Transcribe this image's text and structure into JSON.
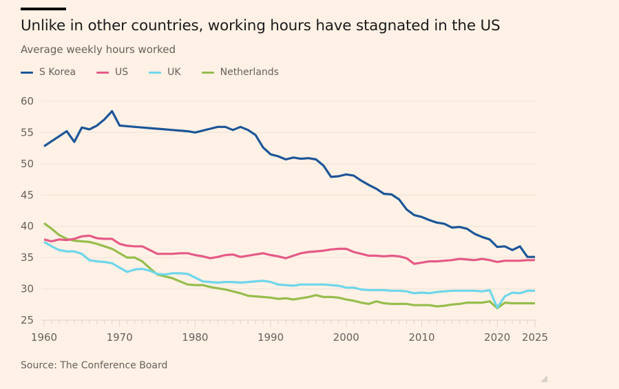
{
  "header": {
    "title": "Unlike in other countries, working hours have stagnated in the US",
    "subtitle": "Average weekly hours worked"
  },
  "legend": [
    {
      "label": "S Korea",
      "color": "#1b5597"
    },
    {
      "label": "US",
      "color": "#e55a86"
    },
    {
      "label": "UK",
      "color": "#6dd6ea"
    },
    {
      "label": "Netherlands",
      "color": "#96bd4c"
    }
  ],
  "footer": {
    "source": "Source: The Conference Board"
  },
  "chart_data": {
    "type": "line",
    "title": "Unlike in other countries, working hours have stagnated in the US",
    "subtitle": "Average weekly hours worked",
    "xlabel": "",
    "ylabel": "",
    "xlim": [
      1960,
      2025
    ],
    "ylim": [
      25,
      60
    ],
    "grid": true,
    "legend_position": "top-left",
    "x_ticks": [
      1960,
      1970,
      1980,
      1990,
      2000,
      2010,
      2020,
      2025
    ],
    "y_ticks": [
      25,
      30,
      35,
      40,
      45,
      50,
      55,
      60
    ],
    "x": [
      1960,
      1961,
      1962,
      1963,
      1964,
      1965,
      1966,
      1967,
      1968,
      1969,
      1970,
      1971,
      1972,
      1973,
      1974,
      1975,
      1976,
      1977,
      1978,
      1979,
      1980,
      1981,
      1982,
      1983,
      1984,
      1985,
      1986,
      1987,
      1988,
      1989,
      1990,
      1991,
      1992,
      1993,
      1994,
      1995,
      1996,
      1997,
      1998,
      1999,
      2000,
      2001,
      2002,
      2003,
      2004,
      2005,
      2006,
      2007,
      2008,
      2009,
      2010,
      2011,
      2012,
      2013,
      2014,
      2015,
      2016,
      2017,
      2018,
      2019,
      2020,
      2021,
      2022,
      2023,
      2024,
      2025
    ],
    "series": [
      {
        "name": "S Korea",
        "color": "#1b5597",
        "values": [
          52.8,
          53.6,
          54.4,
          55.2,
          53.5,
          55.8,
          55.5,
          56.1,
          57.1,
          58.4,
          56.1,
          56.0,
          55.9,
          55.8,
          55.7,
          55.6,
          55.5,
          55.4,
          55.3,
          55.2,
          55.0,
          55.3,
          55.6,
          55.9,
          55.9,
          55.4,
          55.9,
          55.4,
          54.6,
          52.6,
          51.5,
          51.2,
          50.7,
          51.0,
          50.8,
          50.9,
          50.7,
          49.7,
          47.9,
          48.0,
          48.3,
          48.1,
          47.3,
          46.6,
          46.0,
          45.2,
          45.1,
          44.3,
          42.7,
          41.8,
          41.5,
          41.0,
          40.6,
          40.4,
          39.8,
          39.9,
          39.6,
          38.8,
          38.3,
          37.9,
          36.7,
          36.8,
          36.2,
          36.8,
          35.1,
          35.1
        ]
      },
      {
        "name": "US",
        "color": "#e55a86",
        "values": [
          37.9,
          37.6,
          37.9,
          37.8,
          38.0,
          38.4,
          38.5,
          38.1,
          38.0,
          38.0,
          37.2,
          36.9,
          36.8,
          36.8,
          36.2,
          35.6,
          35.6,
          35.6,
          35.7,
          35.7,
          35.4,
          35.2,
          34.9,
          35.1,
          35.4,
          35.5,
          35.1,
          35.3,
          35.5,
          35.7,
          35.4,
          35.2,
          34.9,
          35.3,
          35.7,
          35.9,
          36.0,
          36.1,
          36.3,
          36.4,
          36.4,
          35.9,
          35.6,
          35.3,
          35.3,
          35.2,
          35.3,
          35.2,
          34.9,
          34.0,
          34.2,
          34.4,
          34.4,
          34.5,
          34.6,
          34.8,
          34.7,
          34.6,
          34.8,
          34.6,
          34.3,
          34.5,
          34.5,
          34.5,
          34.6,
          34.6
        ]
      },
      {
        "name": "UK",
        "color": "#6dd6ea",
        "values": [
          37.5,
          36.8,
          36.2,
          36.0,
          36.0,
          35.6,
          34.6,
          34.4,
          34.3,
          34.1,
          33.4,
          32.7,
          33.1,
          33.2,
          32.9,
          32.4,
          32.3,
          32.5,
          32.5,
          32.4,
          31.8,
          31.2,
          31.1,
          31.0,
          31.1,
          31.1,
          31.0,
          31.1,
          31.2,
          31.3,
          31.1,
          30.7,
          30.6,
          30.5,
          30.7,
          30.7,
          30.7,
          30.7,
          30.6,
          30.5,
          30.2,
          30.2,
          29.9,
          29.8,
          29.8,
          29.8,
          29.7,
          29.7,
          29.6,
          29.3,
          29.4,
          29.3,
          29.5,
          29.6,
          29.7,
          29.7,
          29.7,
          29.7,
          29.6,
          29.8,
          27.0,
          28.8,
          29.4,
          29.3,
          29.7,
          29.7
        ]
      },
      {
        "name": "Netherlands",
        "color": "#96bd4c",
        "values": [
          40.5,
          39.6,
          38.6,
          38.0,
          37.7,
          37.6,
          37.5,
          37.2,
          36.8,
          36.4,
          35.7,
          35.0,
          35.0,
          34.4,
          33.3,
          32.3,
          32.0,
          31.7,
          31.2,
          30.7,
          30.6,
          30.6,
          30.3,
          30.1,
          29.9,
          29.6,
          29.3,
          28.9,
          28.8,
          28.7,
          28.6,
          28.4,
          28.5,
          28.3,
          28.5,
          28.7,
          29.0,
          28.7,
          28.7,
          28.6,
          28.3,
          28.1,
          27.8,
          27.6,
          28.0,
          27.7,
          27.6,
          27.6,
          27.6,
          27.4,
          27.4,
          27.4,
          27.2,
          27.3,
          27.5,
          27.6,
          27.8,
          27.8,
          27.8,
          28.0,
          26.9,
          27.8,
          27.7,
          27.7,
          27.7,
          27.7
        ]
      }
    ]
  }
}
